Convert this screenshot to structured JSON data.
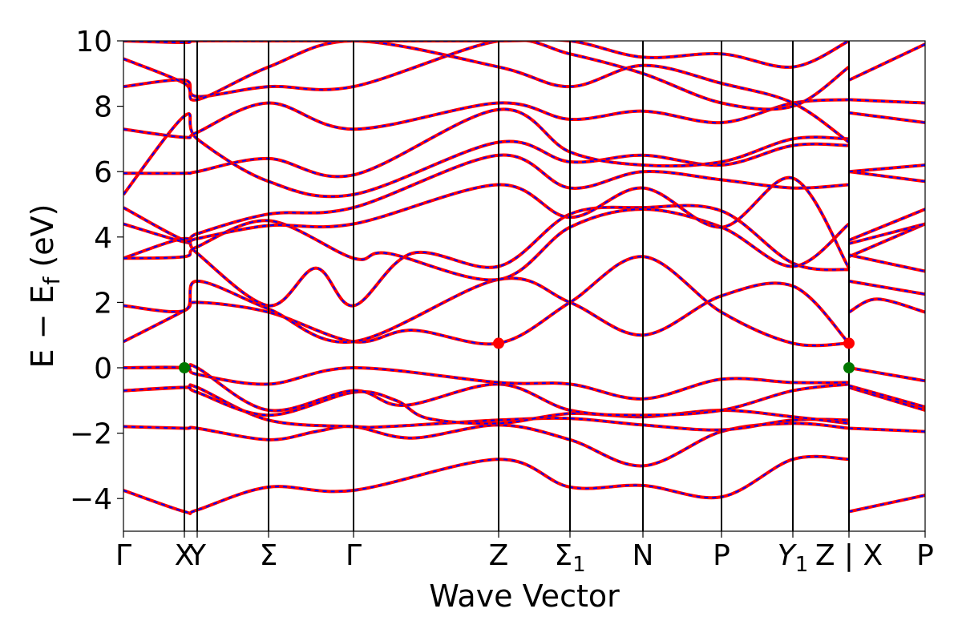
{
  "chart_data": {
    "type": "line",
    "xlabel": "Wave Vector",
    "ylabel": "E − E_f (eV)",
    "ylabel_parts": {
      "pre": "E − E",
      "sub": "f",
      "post": " (eV)"
    },
    "ylim": [
      -5,
      10
    ],
    "y_ticks": [
      -4,
      -2,
      0,
      2,
      4,
      6,
      8,
      10
    ],
    "y_tick_labels": [
      "−4",
      "−2",
      "0",
      "2",
      "4",
      "6",
      "8",
      "10"
    ],
    "kpath_xlim": [
      0,
      1
    ],
    "kpoints": [
      {
        "label": "Γ",
        "x": 0.0,
        "line": false
      },
      {
        "label": "X",
        "x": 0.076,
        "line": true
      },
      {
        "label": "Y",
        "x": 0.092,
        "line": true
      },
      {
        "label": "Σ",
        "x": 0.181,
        "line": true
      },
      {
        "label": "Γ",
        "x": 0.287,
        "line": true
      },
      {
        "label": "Z",
        "x": 0.468,
        "line": true
      },
      {
        "label": "Σ",
        "sub": "1",
        "x": 0.557,
        "line": true
      },
      {
        "label": "N",
        "x": 0.648,
        "line": true
      },
      {
        "label": "P",
        "x": 0.746,
        "line": true
      },
      {
        "label": "Y",
        "sub": "1",
        "x": 0.835,
        "line": true,
        "italic": true
      },
      {
        "label": "Z | X",
        "x": 0.905,
        "line": true
      },
      {
        "label": "P",
        "x": 1.0,
        "line": false
      }
    ],
    "series": [
      {
        "color": "#ff0000",
        "style": "solid"
      },
      {
        "color": "#0000ff",
        "style": "dashed"
      }
    ],
    "markers": [
      {
        "x": 0.076,
        "y": 0.0,
        "color": "#007700"
      },
      {
        "x": 0.468,
        "y": 0.75,
        "color": "#ff0000"
      },
      {
        "x": 0.905,
        "y": 0.75,
        "color": "#ff0000"
      },
      {
        "x": 0.905,
        "y": 0.0,
        "color": "#007700"
      }
    ],
    "bands": [
      {
        "x": [
          0,
          0.076,
          0.092,
          0.181,
          0.287,
          0.468,
          0.557,
          0.648,
          0.746,
          0.835,
          0.905
        ],
        "y": [
          -3.75,
          -4.4,
          -4.35,
          -3.65,
          -3.75,
          -2.8,
          -3.65,
          -3.6,
          -3.95,
          -2.8,
          -2.8
        ]
      },
      {
        "x": [
          0.905,
          1.0
        ],
        "y": [
          -4.4,
          -3.9
        ]
      },
      {
        "x": [
          0,
          0.076,
          0.092,
          0.181,
          0.24,
          0.287,
          0.36,
          0.468,
          0.557,
          0.648,
          0.746,
          0.835,
          0.905
        ],
        "y": [
          -1.8,
          -1.85,
          -1.85,
          -2.2,
          -1.95,
          -1.8,
          -2.15,
          -1.75,
          -2.2,
          -3.0,
          -1.95,
          -1.7,
          -1.85
        ]
      },
      {
        "x": [
          0.905,
          1.0
        ],
        "y": [
          -1.85,
          -1.95
        ]
      },
      {
        "x": [
          0,
          0.076,
          0.092,
          0.181,
          0.287,
          0.33,
          0.468,
          0.557,
          0.648,
          0.746,
          0.835,
          0.905
        ],
        "y": [
          -0.7,
          -0.6,
          -0.6,
          -1.6,
          -1.8,
          -1.8,
          -1.6,
          -1.55,
          -1.75,
          -1.9,
          -1.6,
          -1.6
        ]
      },
      {
        "x": [
          0.905,
          1.0
        ],
        "y": [
          -0.6,
          -1.3
        ]
      },
      {
        "x": [
          0,
          0.076,
          0.092,
          0.181,
          0.287,
          0.34,
          0.38,
          0.468,
          0.557,
          0.648,
          0.746,
          0.835,
          0.905
        ],
        "y": [
          -0.7,
          -0.6,
          -0.75,
          -1.45,
          -0.75,
          -1.0,
          -1.55,
          -1.7,
          -1.4,
          -1.5,
          -1.3,
          -1.5,
          -1.7
        ]
      },
      {
        "x": [
          0.905,
          1.0
        ],
        "y": [
          -0.55,
          -1.2
        ]
      },
      {
        "x": [
          0,
          0.076,
          0.092,
          0.181,
          0.287,
          0.35,
          0.468,
          0.557,
          0.648,
          0.746,
          0.835,
          0.905
        ],
        "y": [
          0.0,
          0.0,
          0.0,
          -1.3,
          -0.7,
          -1.15,
          -0.5,
          -1.3,
          -1.45,
          -1.3,
          -0.7,
          -0.5
        ]
      },
      {
        "x": [
          0.905,
          1.0
        ],
        "y": [
          0.0,
          -0.4
        ]
      },
      {
        "x": [
          0,
          0.076,
          0.092,
          0.181,
          0.287,
          0.468,
          0.557,
          0.648,
          0.746,
          0.835,
          0.905
        ],
        "y": [
          0.0,
          0.0,
          -0.2,
          -0.5,
          0.0,
          -0.45,
          -0.5,
          -0.95,
          -0.35,
          -0.45,
          -0.45
        ]
      },
      {
        "x": [
          0,
          0.076,
          0.092,
          0.181,
          0.287,
          0.36,
          0.468,
          0.557,
          0.648,
          0.746,
          0.835,
          0.905
        ],
        "y": [
          0.8,
          1.75,
          2.0,
          1.7,
          0.8,
          1.15,
          0.75,
          2.0,
          3.4,
          1.7,
          0.75,
          0.75
        ]
      },
      {
        "x": [
          0.905,
          0.94,
          1.0
        ],
        "y": [
          1.7,
          2.1,
          1.7
        ]
      },
      {
        "x": [
          0,
          0.076,
          0.092,
          0.181,
          0.287,
          0.468,
          0.557,
          0.648,
          0.746,
          0.835,
          0.905
        ],
        "y": [
          1.9,
          1.75,
          2.65,
          1.8,
          0.8,
          2.7,
          2.0,
          1.0,
          2.2,
          2.5,
          0.75
        ]
      },
      {
        "x": [
          0.905,
          1.0
        ],
        "y": [
          2.65,
          2.25
        ]
      },
      {
        "x": [
          0,
          0.076,
          0.092,
          0.181,
          0.24,
          0.287,
          0.36,
          0.468,
          0.557,
          0.648,
          0.746,
          0.835,
          0.905
        ],
        "y": [
          3.35,
          3.95,
          3.5,
          1.9,
          3.05,
          1.9,
          3.5,
          3.1,
          4.7,
          4.9,
          4.8,
          3.2,
          3.0
        ]
      },
      {
        "x": [
          0.905,
          1.0
        ],
        "y": [
          3.4,
          4.4
        ]
      },
      {
        "x": [
          0,
          0.076,
          0.092,
          0.181,
          0.287,
          0.33,
          0.468,
          0.557,
          0.648,
          0.746,
          0.835,
          0.905
        ],
        "y": [
          3.35,
          3.4,
          3.7,
          4.5,
          3.35,
          3.5,
          2.7,
          4.3,
          4.85,
          4.3,
          3.1,
          4.4
        ]
      },
      {
        "x": [
          0.905,
          1.0
        ],
        "y": [
          3.45,
          2.95
        ]
      },
      {
        "x": [
          0,
          0.076,
          0.092,
          0.181,
          0.287,
          0.468,
          0.557,
          0.648,
          0.746,
          0.835,
          0.905
        ],
        "y": [
          4.4,
          3.85,
          3.95,
          4.35,
          4.4,
          5.6,
          4.6,
          5.5,
          4.3,
          5.8,
          3.05
        ]
      },
      {
        "x": [
          0.905,
          1.0
        ],
        "y": [
          3.8,
          4.4
        ]
      },
      {
        "x": [
          0,
          0.076,
          0.092,
          0.181,
          0.287,
          0.468,
          0.557,
          0.648,
          0.746,
          0.835,
          0.905
        ],
        "y": [
          4.9,
          3.9,
          4.1,
          4.7,
          4.9,
          6.5,
          5.5,
          6.0,
          5.75,
          5.5,
          5.6
        ]
      },
      {
        "x": [
          0.905,
          1.0
        ],
        "y": [
          3.9,
          4.85
        ]
      },
      {
        "x": [
          0,
          0.076,
          0.092,
          0.181,
          0.287,
          0.468,
          0.557,
          0.648,
          0.746,
          0.835,
          0.905
        ],
        "y": [
          5.3,
          7.7,
          7.0,
          5.7,
          5.3,
          6.9,
          6.3,
          6.5,
          6.2,
          6.8,
          6.8
        ]
      },
      {
        "x": [
          0.905,
          1.0
        ],
        "y": [
          6.0,
          5.7
        ]
      },
      {
        "x": [
          0,
          0.076,
          0.092,
          0.181,
          0.287,
          0.468,
          0.557,
          0.648,
          0.746,
          0.835,
          0.905
        ],
        "y": [
          5.95,
          5.95,
          6.0,
          6.4,
          5.9,
          7.9,
          6.6,
          6.2,
          6.3,
          7.0,
          7.0
        ]
      },
      {
        "x": [
          0.905,
          1.0
        ],
        "y": [
          6.0,
          6.2
        ]
      },
      {
        "x": [
          0,
          0.076,
          0.092,
          0.181,
          0.287,
          0.468,
          0.557,
          0.648,
          0.746,
          0.835,
          0.905
        ],
        "y": [
          7.3,
          7.05,
          7.2,
          8.1,
          7.3,
          8.1,
          7.6,
          7.85,
          7.5,
          8.1,
          8.2
        ]
      },
      {
        "x": [
          0.905,
          1.0
        ],
        "y": [
          7.8,
          7.5
        ]
      },
      {
        "x": [
          0,
          0.076,
          0.092,
          0.181,
          0.287,
          0.468,
          0.557,
          0.648,
          0.746,
          0.835,
          0.905
        ],
        "y": [
          8.6,
          8.8,
          8.3,
          8.6,
          8.6,
          10.0,
          9.6,
          9.0,
          8.1,
          8.0,
          9.2
        ]
      },
      {
        "x": [
          0.905,
          1.0
        ],
        "y": [
          8.8,
          9.9
        ]
      },
      {
        "x": [
          0,
          0.076,
          0.092,
          0.181,
          0.287,
          0.468,
          0.557,
          0.648,
          0.746,
          0.835,
          0.905
        ],
        "y": [
          9.45,
          8.7,
          8.2,
          9.2,
          10.0,
          9.2,
          8.6,
          9.25,
          8.7,
          8.1,
          6.9
        ]
      },
      {
        "x": [
          0.905,
          1.0
        ],
        "y": [
          8.2,
          8.1
        ]
      },
      {
        "x": [
          0,
          0.076,
          0.092,
          0.181,
          0.287,
          0.468,
          0.557,
          0.648,
          0.746,
          0.835,
          0.905
        ],
        "y": [
          10.0,
          9.95,
          10.0,
          10.0,
          10.0,
          10.0,
          10.0,
          9.5,
          9.6,
          9.2,
          10.0
        ]
      }
    ]
  }
}
